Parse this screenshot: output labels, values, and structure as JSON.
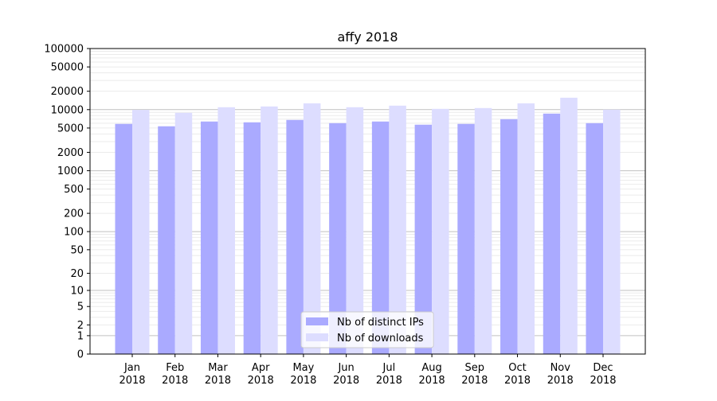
{
  "chart_data": {
    "type": "bar",
    "title": "affy 2018",
    "xlabel": "",
    "ylabel": "",
    "yscale": "log (value+1)",
    "ylim": [
      0,
      100000
    ],
    "yticks": [
      0,
      1,
      2,
      5,
      10,
      20,
      50,
      100,
      200,
      500,
      1000,
      2000,
      5000,
      10000,
      20000,
      50000,
      100000
    ],
    "categories": [
      [
        "Jan",
        "2018"
      ],
      [
        "Feb",
        "2018"
      ],
      [
        "Mar",
        "2018"
      ],
      [
        "Apr",
        "2018"
      ],
      [
        "May",
        "2018"
      ],
      [
        "Jun",
        "2018"
      ],
      [
        "Jul",
        "2018"
      ],
      [
        "Aug",
        "2018"
      ],
      [
        "Sep",
        "2018"
      ],
      [
        "Oct",
        "2018"
      ],
      [
        "Nov",
        "2018"
      ],
      [
        "Dec",
        "2018"
      ]
    ],
    "series": [
      {
        "name": "Nb of distinct IPs",
        "color": "#aaaaff",
        "values": [
          5840,
          5340,
          6390,
          6200,
          6780,
          6010,
          6390,
          5670,
          5840,
          6980,
          8610,
          6010
        ]
      },
      {
        "name": "Nb of downloads",
        "color": "#ddddff",
        "values": [
          9900,
          8870,
          10940,
          11270,
          12700,
          10940,
          11620,
          10300,
          10620,
          12700,
          15670,
          10000
        ]
      }
    ],
    "grid": true,
    "legend": "bottom-center"
  }
}
